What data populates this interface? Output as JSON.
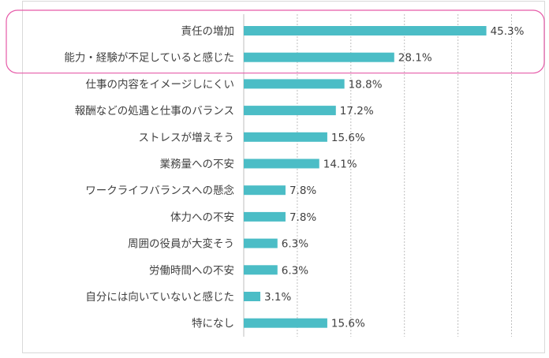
{
  "chart_data": {
    "type": "bar",
    "orientation": "horizontal",
    "categories": [
      "責任の増加",
      "能力・経験が不足していると感じた",
      "仕事の内容をイメージしにくい",
      "報酬などの処遇と仕事のバランス",
      "ストレスが増えそう",
      "業務量への不安",
      "ワークライフバランスへの懸念",
      "体力への不安",
      "周囲の役員が大変そう",
      "労働時間への不安",
      "自分には向いていないと感じた",
      "特になし"
    ],
    "values": [
      45.3,
      28.1,
      18.8,
      17.2,
      15.6,
      14.1,
      7.8,
      7.8,
      6.3,
      6.3,
      3.1,
      15.6
    ],
    "value_labels": [
      "45.3%",
      "28.1%",
      "18.8%",
      "17.2%",
      "15.6%",
      "14.1%",
      "7.8%",
      "7.8%",
      "6.3%",
      "6.3%",
      "3.1%",
      "15.6%"
    ],
    "xlim": [
      0,
      50
    ],
    "gridlines": [
      10,
      20,
      30,
      40,
      50
    ],
    "grid": true,
    "highlighted_categories": [
      0,
      1
    ],
    "colors": {
      "bar": "#4bbdc6",
      "highlight": "#e65aa8"
    }
  }
}
